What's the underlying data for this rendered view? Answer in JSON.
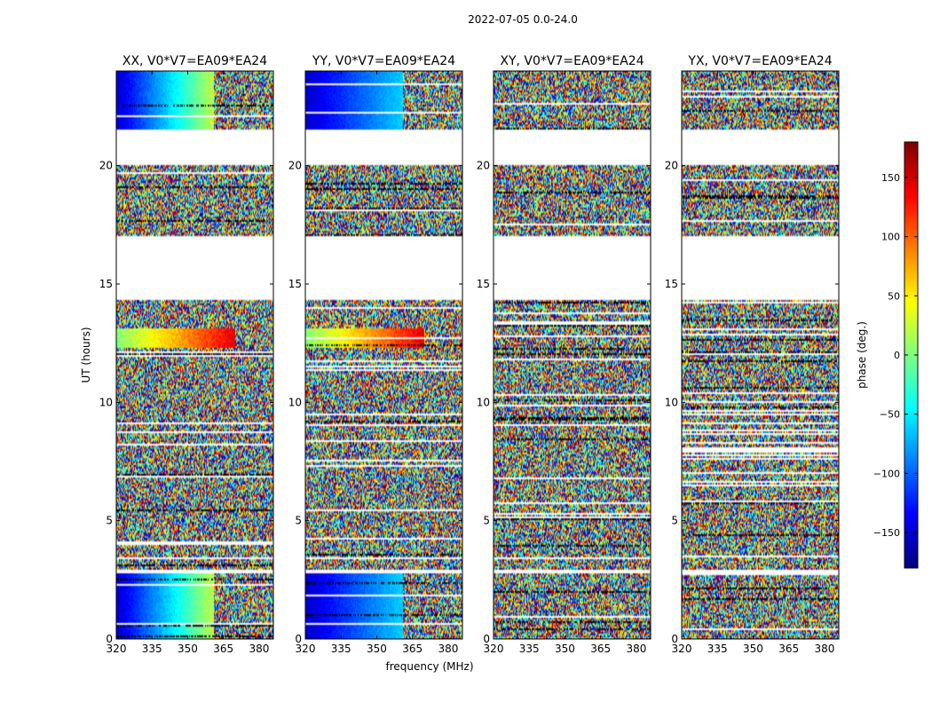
{
  "chart_data": {
    "type": "heatmap",
    "title": "2022-07-05 0.0-24.0",
    "xlabel": "frequency (MHz)",
    "ylabel": "UT (hours)",
    "xlim": [
      320,
      386
    ],
    "ylim": [
      0,
      24
    ],
    "x_ticks": [
      "320",
      "335",
      "350",
      "365",
      "380"
    ],
    "y_ticks": [
      "0",
      "5",
      "10",
      "15",
      "20"
    ],
    "colorbar": {
      "label": "phase (deg.)",
      "range": [
        -180,
        180
      ],
      "ticks": [
        "150",
        "100",
        "50",
        "0",
        "−50",
        "−100",
        "−150"
      ],
      "colormap": "jet"
    },
    "panels": [
      {
        "title": "XX, V0*V7=EA09*EA24",
        "coherent": true,
        "slope": 3.2
      },
      {
        "title": "YY, V0*V7=EA09*EA24",
        "coherent": true,
        "slope": 1.7
      },
      {
        "title": "XY, V0*V7=EA09*EA24",
        "coherent": false,
        "slope": 0
      },
      {
        "title": "YX, V0*V7=EA09*EA24",
        "coherent": false,
        "slope": 0
      }
    ],
    "data_ut_segments": [
      [
        0.0,
        2.8
      ],
      [
        2.9,
        14.3
      ],
      [
        17.0,
        20.0
      ],
      [
        21.5,
        24.0
      ]
    ]
  }
}
